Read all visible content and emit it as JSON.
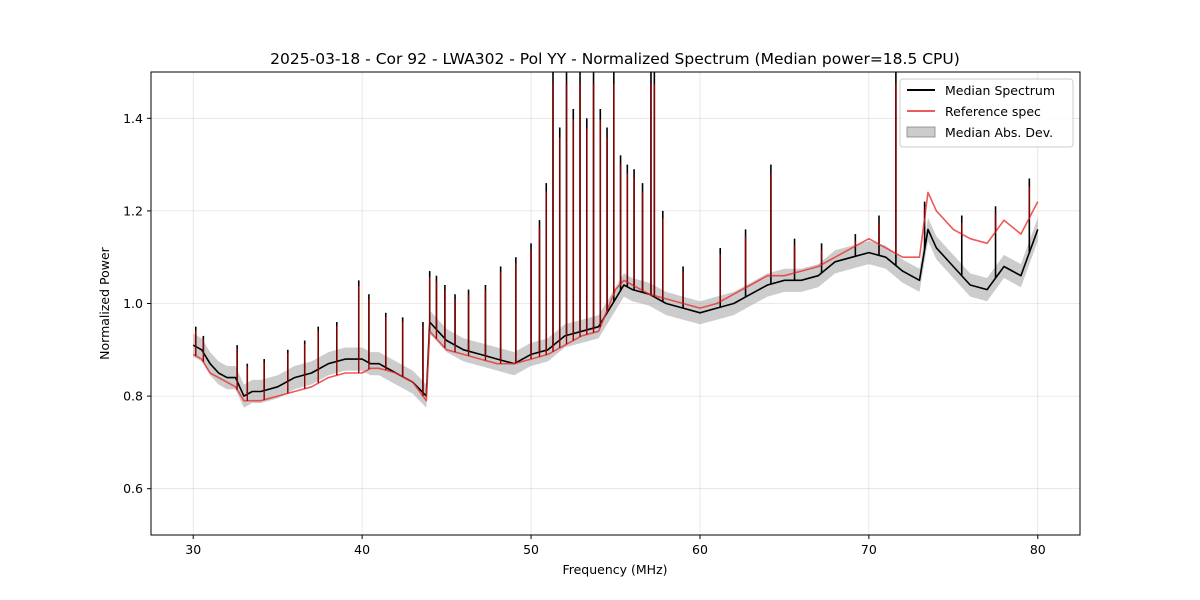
{
  "chart_data": {
    "type": "line",
    "title": "2025-03-18 - Cor 92 - LWA302 - Pol YY - Normalized Spectrum (Median power=18.5 CPU)",
    "xlabel": "Frequency (MHz)",
    "ylabel": "Normalized Power",
    "xlim": [
      27.5,
      82.5
    ],
    "ylim": [
      0.5,
      1.5
    ],
    "xticks": [
      30,
      40,
      50,
      60,
      70,
      80
    ],
    "yticks": [
      0.6,
      0.8,
      1.0,
      1.2,
      1.4
    ],
    "xtick_labels": [
      "30",
      "40",
      "50",
      "60",
      "70",
      "80"
    ],
    "ytick_labels": [
      "0.6",
      "0.8",
      "1.0",
      "1.2",
      "1.4"
    ],
    "grid": true,
    "legend_position": "top-right",
    "legend": [
      "Median Spectrum",
      "Reference spec",
      "Median Abs. Dev."
    ],
    "colors": {
      "median": "#000000",
      "reference": "#e8312f",
      "mad": "#aaaaaa",
      "overlap": "#8b0000"
    },
    "series": [
      {
        "name": "Median Spectrum",
        "x": [
          30,
          30.5,
          31,
          31.5,
          32,
          32.5,
          33,
          33.5,
          34,
          35,
          36,
          37,
          38,
          39,
          40,
          40.5,
          41,
          42,
          43,
          43.8,
          44,
          44.5,
          45,
          46,
          47,
          48,
          49,
          50,
          51,
          52,
          53,
          54,
          55,
          55.5,
          56,
          57,
          58,
          59,
          60,
          61,
          62,
          63,
          64,
          65,
          66,
          67,
          68,
          69,
          70,
          71,
          72,
          73,
          73.5,
          74,
          75,
          76,
          77,
          78,
          79,
          80
        ],
        "y": [
          0.91,
          0.9,
          0.87,
          0.85,
          0.84,
          0.84,
          0.8,
          0.81,
          0.81,
          0.82,
          0.84,
          0.85,
          0.87,
          0.88,
          0.88,
          0.87,
          0.87,
          0.85,
          0.83,
          0.8,
          0.96,
          0.94,
          0.92,
          0.9,
          0.89,
          0.88,
          0.87,
          0.89,
          0.9,
          0.93,
          0.94,
          0.95,
          1.01,
          1.04,
          1.03,
          1.02,
          1.0,
          0.99,
          0.98,
          0.99,
          1.0,
          1.02,
          1.04,
          1.05,
          1.05,
          1.06,
          1.09,
          1.1,
          1.11,
          1.1,
          1.07,
          1.05,
          1.16,
          1.12,
          1.08,
          1.04,
          1.03,
          1.08,
          1.06,
          1.16
        ]
      },
      {
        "name": "Reference spec",
        "x": [
          30,
          30.5,
          31,
          31.5,
          32,
          32.5,
          33,
          33.5,
          34,
          35,
          36,
          37,
          38,
          39,
          40,
          40.5,
          41,
          42,
          43,
          43.8,
          44,
          44.5,
          45,
          46,
          47,
          48,
          49,
          50,
          51,
          52,
          53,
          54,
          55,
          55.5,
          56,
          57,
          58,
          59,
          60,
          61,
          62,
          63,
          64,
          65,
          66,
          67,
          68,
          69,
          70,
          71,
          72,
          73,
          73.5,
          74,
          75,
          76,
          77,
          78,
          79,
          80
        ],
        "y": [
          0.89,
          0.88,
          0.85,
          0.84,
          0.83,
          0.82,
          0.79,
          0.79,
          0.79,
          0.8,
          0.81,
          0.82,
          0.84,
          0.85,
          0.85,
          0.86,
          0.86,
          0.85,
          0.83,
          0.79,
          0.94,
          0.92,
          0.9,
          0.89,
          0.88,
          0.87,
          0.87,
          0.88,
          0.89,
          0.91,
          0.93,
          0.94,
          1.03,
          1.05,
          1.04,
          1.02,
          1.01,
          1.0,
          0.99,
          1.0,
          1.02,
          1.04,
          1.06,
          1.06,
          1.07,
          1.08,
          1.1,
          1.12,
          1.14,
          1.12,
          1.1,
          1.1,
          1.24,
          1.2,
          1.16,
          1.14,
          1.13,
          1.18,
          1.15,
          1.22
        ]
      },
      {
        "name": "Median Abs. Dev.",
        "band": 0.025
      }
    ],
    "spikes": [
      {
        "x": 30.15,
        "y": 0.95
      },
      {
        "x": 30.6,
        "y": 0.93
      },
      {
        "x": 32.6,
        "y": 0.91
      },
      {
        "x": 33.2,
        "y": 0.87
      },
      {
        "x": 34.2,
        "y": 0.88
      },
      {
        "x": 35.6,
        "y": 0.9
      },
      {
        "x": 36.6,
        "y": 0.92
      },
      {
        "x": 37.4,
        "y": 0.95
      },
      {
        "x": 38.5,
        "y": 0.96
      },
      {
        "x": 39.8,
        "y": 1.05
      },
      {
        "x": 40.4,
        "y": 1.02
      },
      {
        "x": 41.4,
        "y": 0.98
      },
      {
        "x": 42.4,
        "y": 0.97
      },
      {
        "x": 43.6,
        "y": 0.96
      },
      {
        "x": 44.0,
        "y": 1.07
      },
      {
        "x": 44.4,
        "y": 1.06
      },
      {
        "x": 44.9,
        "y": 1.04
      },
      {
        "x": 45.5,
        "y": 1.02
      },
      {
        "x": 46.3,
        "y": 1.03
      },
      {
        "x": 47.3,
        "y": 1.04
      },
      {
        "x": 48.2,
        "y": 1.08
      },
      {
        "x": 49.1,
        "y": 1.1
      },
      {
        "x": 50.0,
        "y": 1.13
      },
      {
        "x": 50.5,
        "y": 1.18
      },
      {
        "x": 50.9,
        "y": 1.26
      },
      {
        "x": 51.3,
        "y": 1.5
      },
      {
        "x": 51.7,
        "y": 1.38
      },
      {
        "x": 52.1,
        "y": 1.5
      },
      {
        "x": 52.5,
        "y": 1.42
      },
      {
        "x": 52.9,
        "y": 1.5
      },
      {
        "x": 53.3,
        "y": 1.4
      },
      {
        "x": 53.7,
        "y": 1.5
      },
      {
        "x": 54.1,
        "y": 1.42
      },
      {
        "x": 54.5,
        "y": 1.38
      },
      {
        "x": 54.9,
        "y": 1.5
      },
      {
        "x": 55.3,
        "y": 1.32
      },
      {
        "x": 55.7,
        "y": 1.3
      },
      {
        "x": 56.1,
        "y": 1.29
      },
      {
        "x": 56.6,
        "y": 1.26
      },
      {
        "x": 57.1,
        "y": 1.5
      },
      {
        "x": 57.3,
        "y": 1.5
      },
      {
        "x": 57.8,
        "y": 1.2
      },
      {
        "x": 59.0,
        "y": 1.08
      },
      {
        "x": 61.2,
        "y": 1.12
      },
      {
        "x": 62.7,
        "y": 1.16
      },
      {
        "x": 64.2,
        "y": 1.3
      },
      {
        "x": 65.6,
        "y": 1.14
      },
      {
        "x": 67.2,
        "y": 1.13
      },
      {
        "x": 69.2,
        "y": 1.15
      },
      {
        "x": 70.6,
        "y": 1.19
      },
      {
        "x": 71.6,
        "y": 1.5
      },
      {
        "x": 73.3,
        "y": 1.22
      },
      {
        "x": 75.5,
        "y": 1.19
      },
      {
        "x": 77.5,
        "y": 1.21
      },
      {
        "x": 79.5,
        "y": 1.27
      }
    ]
  }
}
